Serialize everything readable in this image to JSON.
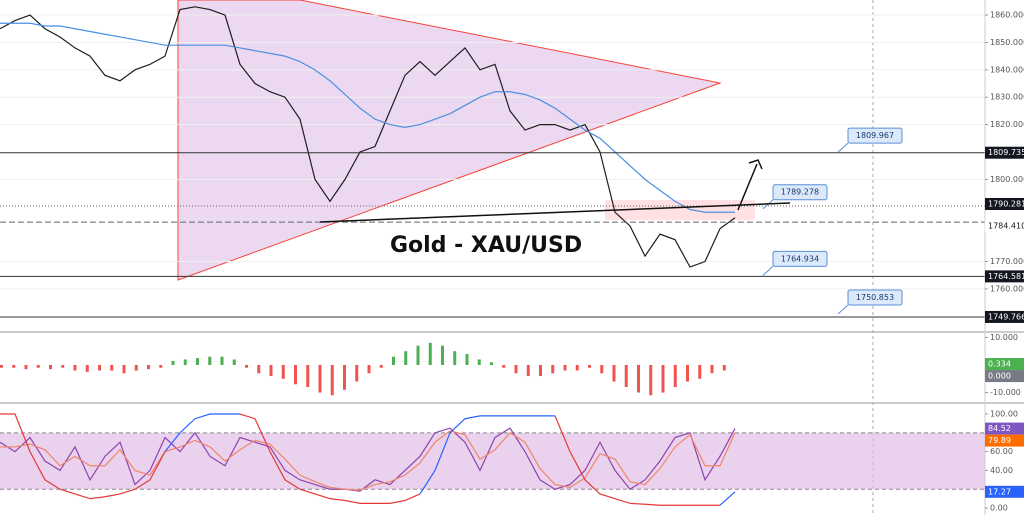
{
  "chart_data": [
    {
      "type": "line",
      "title": "Gold - XAU/USD",
      "ylim": [
        1745,
        1865.5
      ],
      "yticks": [
        {
          "value": 1760,
          "label": "1760.000"
        },
        {
          "value": 1770,
          "label": "1770.000"
        },
        {
          "value": 1800,
          "label": "1800.000"
        },
        {
          "value": 1820,
          "label": "1820.000"
        },
        {
          "value": 1830,
          "label": "1830.000"
        },
        {
          "value": 1840,
          "label": "1840.000"
        },
        {
          "value": 1850,
          "label": "1850.000"
        },
        {
          "value": 1860,
          "label": "1860.000"
        }
      ],
      "grid": true,
      "series": [
        {
          "color": "#1e1e1e",
          "values": [
            1855,
            1858,
            1860,
            1855,
            1852,
            1848,
            1845,
            1838,
            1836,
            1840,
            1842,
            1845,
            1862,
            1863,
            1862,
            1860,
            1842,
            1835,
            1832,
            1830,
            1822,
            1800,
            1792,
            1800,
            1810,
            1812,
            1825,
            1838,
            1843,
            1838,
            1843,
            1848,
            1840,
            1842,
            1825,
            1818,
            1820,
            1820,
            1818,
            1820,
            1810,
            1788,
            1783,
            1772,
            1780,
            1778,
            1768,
            1770,
            1782,
            1786
          ]
        },
        {
          "color": "#4a90e2",
          "values": [
            1857,
            1857,
            1857,
            1856,
            1856,
            1855,
            1854,
            1853,
            1852,
            1851,
            1850,
            1849,
            1849,
            1849,
            1849,
            1849,
            1848,
            1847,
            1846,
            1845,
            1843,
            1840,
            1836,
            1831,
            1826,
            1822,
            1820,
            1819,
            1820,
            1822,
            1824,
            1827,
            1830,
            1832,
            1832,
            1831,
            1829,
            1826,
            1822,
            1818,
            1815,
            1810,
            1805,
            1800,
            1796,
            1792,
            1789,
            1788,
            1788,
            1788
          ]
        }
      ],
      "levels": [
        1809.735,
        1764.581,
        1749.766
      ],
      "price_labels": [
        1790.281,
        {
          "value": 1784.41,
          "label": "1784.410"
        }
      ],
      "callouts": [
        1809.967,
        1789.278,
        1764.934,
        1750.853
      ]
    },
    {
      "type": "bar",
      "ylim": [
        -12.7,
        11.6
      ],
      "yticks": [
        {
          "value": 10,
          "label": "10.000"
        },
        {
          "value": -10,
          "label": "-10.000"
        }
      ],
      "up_color": "#4caf50",
      "down_color": "#ef5350",
      "values": [
        -1,
        -1,
        -1.5,
        -1,
        -1.5,
        -1,
        -2,
        -2.5,
        -2,
        -2,
        -3,
        -2,
        -1.5,
        -1,
        1.5,
        2,
        2.5,
        3,
        3,
        2,
        -1,
        -3,
        -4,
        -5,
        -7,
        -8,
        -10,
        -11,
        -9,
        -6,
        -3,
        -1,
        3,
        5,
        7,
        8,
        7,
        5,
        4,
        2,
        1,
        -1,
        -3,
        -4,
        -4,
        -3,
        -2,
        -2,
        -1,
        -3,
        -6,
        -8,
        -10,
        -11,
        -10,
        -8,
        -6,
        -5,
        -3,
        -2
      ],
      "badges": [
        {
          "value": 0.334,
          "label": "0.334",
          "color": "#4caf50"
        },
        {
          "value": 0,
          "label": "0.000",
          "color": "#787b86"
        }
      ]
    },
    {
      "type": "line",
      "ylim": [
        -7.4,
        109.6
      ],
      "yticks": [
        {
          "value": 100,
          "label": "100.00"
        },
        {
          "value": 60,
          "label": "60.00"
        },
        {
          "value": 40,
          "label": "40.00"
        },
        {
          "value": 0,
          "label": "0.00"
        }
      ],
      "band": [
        20,
        80
      ],
      "band_color": "#e1bee7",
      "series": [
        {
          "color": "#8e44ad",
          "values": [
            70,
            60,
            75,
            50,
            40,
            65,
            30,
            55,
            70,
            25,
            40,
            75,
            60,
            80,
            55,
            45,
            75,
            70,
            65,
            40,
            30,
            25,
            20,
            20,
            18,
            30,
            25,
            40,
            55,
            80,
            85,
            70,
            40,
            75,
            85,
            60,
            30,
            20,
            25,
            40,
            70,
            40,
            20,
            30,
            50,
            75,
            80,
            30,
            55,
            84.52
          ]
        },
        {
          "color": "#f0866b",
          "values": [
            65,
            65,
            68,
            62,
            45,
            55,
            45,
            45,
            62,
            40,
            35,
            60,
            65,
            72,
            65,
            50,
            62,
            72,
            68,
            52,
            35,
            28,
            22,
            20,
            19,
            25,
            28,
            35,
            48,
            70,
            82,
            78,
            52,
            62,
            80,
            70,
            42,
            25,
            22,
            32,
            58,
            52,
            28,
            25,
            42,
            65,
            78,
            45,
            45,
            79.89
          ]
        },
        {
          "color": "#e53935",
          "values": [
            100,
            100,
            60,
            30,
            20,
            15,
            10,
            12,
            15,
            20,
            30,
            60,
            null,
            null,
            null,
            null,
            100,
            95,
            60,
            30,
            20,
            15,
            10,
            8,
            5,
            5,
            5,
            8,
            15,
            null,
            null,
            null,
            null,
            null,
            null,
            null,
            null,
            98,
            60,
            30,
            15,
            10,
            5,
            4,
            3,
            3,
            3,
            3,
            3,
            null
          ]
        },
        {
          "color": "#2962ff",
          "values": [
            null,
            null,
            null,
            null,
            null,
            null,
            null,
            null,
            null,
            null,
            null,
            60,
            80,
            95,
            100,
            100,
            100,
            null,
            null,
            null,
            null,
            null,
            null,
            null,
            null,
            null,
            null,
            null,
            15,
            40,
            80,
            95,
            98,
            98,
            98,
            98,
            98,
            98,
            null,
            null,
            null,
            null,
            null,
            null,
            null,
            null,
            null,
            null,
            3,
            17.27
          ]
        }
      ],
      "badges": [
        {
          "value": 84.52,
          "label": "84.52",
          "color": "#7e57c2"
        },
        {
          "value": 79.89,
          "label": "79.89",
          "color": "#ff6d00"
        },
        {
          "value": 17.27,
          "label": "17.27",
          "color": "#2962ff"
        }
      ]
    }
  ]
}
